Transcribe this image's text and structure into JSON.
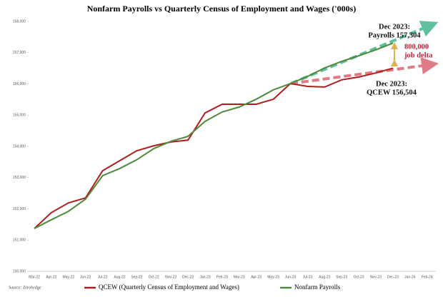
{
  "chart_data": {
    "type": "line",
    "title": "Nonfarm Payrolls vs Quarterly Census of Employment and Wages ('000s)",
    "source": "Source: Zerohedge",
    "categories": [
      "Mar-22",
      "Apr-22",
      "May-22",
      "Jun-22",
      "Jul-22",
      "Aug-22",
      "Sep-22",
      "Oct-22",
      "Nov-22",
      "Dec-22",
      "Jan-23",
      "Feb-23",
      "Mar-23",
      "Apr-23",
      "May-23",
      "Jun-23",
      "Jul-23",
      "Aug-23",
      "Sep-23",
      "Oct-23",
      "Nov-23",
      "Dec-23",
      "Jan-24",
      "Feb-24"
    ],
    "series": [
      {
        "name": "QCEW (Quarterly Census of Employment and Wages)",
        "color": "#b01c1c",
        "values": [
          151370,
          151880,
          152190,
          152350,
          153220,
          153540,
          153860,
          154020,
          154140,
          154200,
          155070,
          155350,
          155350,
          155350,
          155510,
          156010,
          155920,
          155900,
          156130,
          156220,
          156350,
          156504,
          null,
          null
        ]
      },
      {
        "name": "Nonfarm Payrolls",
        "color": "#4e8a3a",
        "values": [
          151370,
          151650,
          151920,
          152310,
          153060,
          153290,
          153570,
          153930,
          154160,
          154320,
          154800,
          155100,
          155260,
          155510,
          155810,
          156010,
          156240,
          156510,
          156720,
          156900,
          157090,
          157304,
          null,
          null
        ]
      }
    ],
    "ylim": [
      150000,
      158000
    ],
    "yticks": [
      {
        "value": 150000,
        "label": "150,000"
      },
      {
        "value": 151000,
        "label": "151,000"
      },
      {
        "value": 152000,
        "label": "152,000"
      },
      {
        "value": 153000,
        "label": "153,000"
      },
      {
        "value": 154000,
        "label": "154,000"
      },
      {
        "value": 155000,
        "label": "155,000"
      },
      {
        "value": 156000,
        "label": "156,000"
      },
      {
        "value": 157000,
        "label": "157,000"
      },
      {
        "value": 158000,
        "label": "158,000"
      }
    ],
    "grid": false,
    "legend": "bottom",
    "annotations": [
      {
        "lines": [
          "Dec 2023:",
          "Payrolls 157,304"
        ],
        "color": "#111111"
      },
      {
        "lines": [
          "800,000",
          "job delta"
        ],
        "color": "#c0203a"
      },
      {
        "lines": [
          "Dec 2023:",
          "QCEW 156,504"
        ],
        "color": "#111111"
      }
    ]
  }
}
